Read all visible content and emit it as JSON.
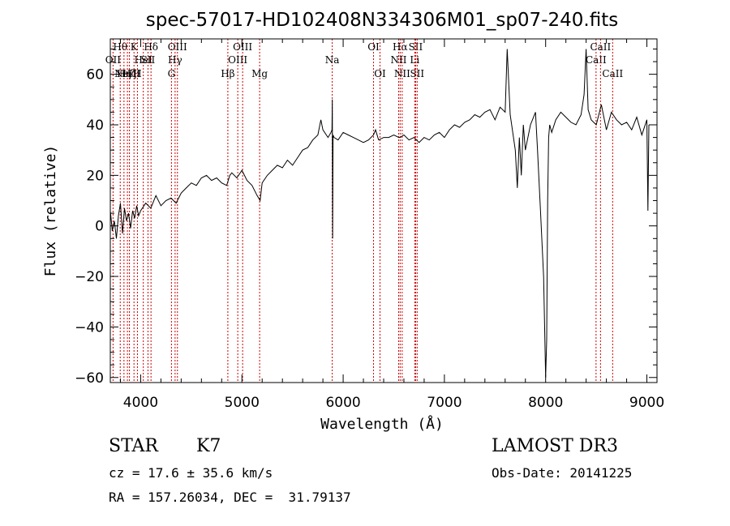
{
  "chart_data": {
    "type": "line",
    "title": "spec-57017-HD102408N334306M01_sp07-240.fits",
    "xlabel": "Wavelength (Å)",
    "ylabel": "Flux (relative)",
    "xlim": [
      3700,
      9100
    ],
    "ylim": [
      -62,
      74
    ],
    "xticks": [
      "4000",
      "5000",
      "6000",
      "7000",
      "8000",
      "9000"
    ],
    "yticks": [
      "−60",
      "−40",
      "−20",
      "0",
      "20",
      "40",
      "60"
    ],
    "grid": false,
    "series": [
      {
        "x": [
          3700,
          3720,
          3740,
          3760,
          3780,
          3800,
          3820,
          3840,
          3860,
          3880,
          3900,
          3920,
          3940,
          3960,
          3980,
          4000,
          4050,
          4100,
          4150,
          4200,
          4250,
          4300,
          4350,
          4400,
          4450,
          4500,
          4550,
          4600,
          4650,
          4700,
          4750,
          4800,
          4850,
          4880,
          4900,
          4950,
          5000,
          5050,
          5100,
          5150,
          5180,
          5200,
          5250,
          5300,
          5350,
          5400,
          5450,
          5500,
          5550,
          5600,
          5650,
          5700,
          5750,
          5780,
          5800,
          5850,
          5880,
          5890,
          5893,
          5896,
          5900,
          5910,
          5950,
          6000,
          6050,
          6100,
          6150,
          6200,
          6250,
          6300,
          6320,
          6350,
          6400,
          6450,
          6500,
          6550,
          6563,
          6600,
          6650,
          6700,
          6750,
          6800,
          6850,
          6900,
          6950,
          7000,
          7050,
          7100,
          7150,
          7200,
          7250,
          7300,
          7350,
          7400,
          7450,
          7500,
          7550,
          7600,
          7620,
          7650,
          7700,
          7720,
          7740,
          7760,
          7780,
          7800,
          7850,
          7900,
          7920,
          7950,
          7980,
          8000,
          8010,
          8020,
          8030,
          8040,
          8060,
          8100,
          8150,
          8200,
          8250,
          8300,
          8350,
          8380,
          8400,
          8420,
          8450,
          8500,
          8550,
          8600,
          8650,
          8700,
          8750,
          8800,
          8850,
          8900,
          8950,
          9000,
          9010,
          9020
        ],
        "y": [
          6,
          -2,
          2,
          -5,
          4,
          9,
          -3,
          7,
          2,
          5,
          -1,
          6,
          3,
          8,
          4,
          6,
          9,
          7,
          12,
          8,
          10,
          11,
          9,
          13,
          15,
          17,
          16,
          19,
          20,
          18,
          19,
          17,
          16,
          20,
          21,
          19,
          22,
          18,
          16,
          12,
          10,
          17,
          20,
          22,
          24,
          23,
          26,
          24,
          27,
          30,
          31,
          34,
          36,
          42,
          38,
          35,
          37,
          38,
          50,
          -5,
          36,
          35,
          34,
          37,
          36,
          35,
          34,
          33,
          34,
          36,
          38,
          34,
          35,
          35,
          36,
          35,
          35,
          36,
          34,
          35,
          33,
          35,
          34,
          36,
          37,
          35,
          38,
          40,
          39,
          41,
          42,
          44,
          43,
          45,
          46,
          42,
          47,
          45,
          70,
          44,
          30,
          15,
          35,
          20,
          40,
          30,
          40,
          45,
          30,
          5,
          -20,
          -60,
          -45,
          10,
          35,
          40,
          37,
          42,
          45,
          43,
          41,
          40,
          44,
          52,
          70,
          46,
          42,
          40,
          48,
          38,
          45,
          42,
          40,
          41,
          38,
          43,
          36,
          42,
          6,
          40
        ]
      }
    ],
    "lines": [
      {
        "x": 3727,
        "labels": [
          "OII"
        ],
        "row": 2
      },
      {
        "x": 3798,
        "labels": [
          "Hθ"
        ],
        "row": 1
      },
      {
        "x": 3835,
        "labels": [
          "Hη"
        ],
        "row": 3
      },
      {
        "x": 3869,
        "labels": [
          "NeIII"
        ],
        "row": 3
      },
      {
        "x": 3889,
        "labels": [
          "Hζ"
        ],
        "row": 3
      },
      {
        "x": 3934,
        "labels": [
          "K"
        ],
        "row": 1
      },
      {
        "x": 3968,
        "labels": [
          "H"
        ],
        "row": 3
      },
      {
        "x": 4026,
        "labels": [
          "HeI"
        ],
        "row": 2
      },
      {
        "x": 4072,
        "labels": [
          "SII"
        ],
        "row": 2
      },
      {
        "x": 4102,
        "labels": [
          "Hδ"
        ],
        "row": 1
      },
      {
        "x": 4304,
        "labels": [
          "G"
        ],
        "row": 3
      },
      {
        "x": 4340,
        "labels": [
          "Hγ"
        ],
        "row": 2
      },
      {
        "x": 4363,
        "labels": [
          "OIII"
        ],
        "row": 1
      },
      {
        "x": 4861,
        "labels": [
          "Hβ"
        ],
        "row": 3
      },
      {
        "x": 4959,
        "labels": [
          "OIII"
        ],
        "row": 2
      },
      {
        "x": 5007,
        "labels": [
          "OIII"
        ],
        "row": 1
      },
      {
        "x": 5175,
        "labels": [
          "Mg"
        ],
        "row": 3
      },
      {
        "x": 5892,
        "labels": [
          "Na"
        ],
        "row": 2
      },
      {
        "x": 6300,
        "labels": [
          "OI"
        ],
        "row": 1
      },
      {
        "x": 6364,
        "labels": [
          "OI"
        ],
        "row": 3
      },
      {
        "x": 6548,
        "labels": [
          "NII"
        ],
        "row": 2
      },
      {
        "x": 6563,
        "labels": [
          "Hα"
        ],
        "row": 1
      },
      {
        "x": 6583,
        "labels": [
          "NII"
        ],
        "row": 3
      },
      {
        "x": 6707,
        "labels": [
          "Li"
        ],
        "row": 2
      },
      {
        "x": 6716,
        "labels": [
          "SII"
        ],
        "row": 1
      },
      {
        "x": 6731,
        "labels": [
          "SII"
        ],
        "row": 3
      },
      {
        "x": 8498,
        "labels": [
          "CaII"
        ],
        "row": 2
      },
      {
        "x": 8542,
        "labels": [
          "CaII"
        ],
        "row": 1
      },
      {
        "x": 8662,
        "labels": [
          "CaII"
        ],
        "row": 3
      }
    ]
  },
  "info": {
    "class": "STAR",
    "subclass": "K7",
    "survey": "LAMOST DR3",
    "cz": "cz = 17.6 ± 35.6 km/s",
    "obs_date": "Obs-Date: 20141225",
    "coords": "RA = 157.26034, DEC =  31.79137"
  },
  "colors": {
    "spectrum": "#000000",
    "lines": "#cc0000"
  }
}
